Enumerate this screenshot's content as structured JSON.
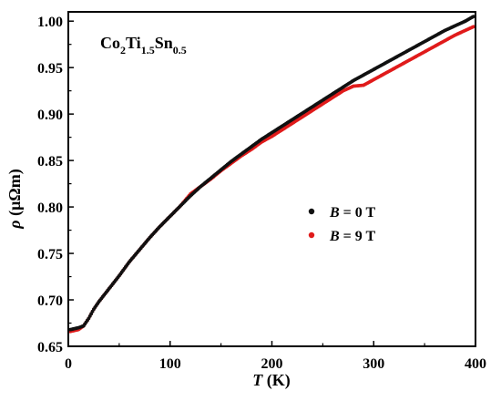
{
  "chart_data": {
    "type": "scatter",
    "annotation": {
      "base": "Co",
      "sub1": "2",
      "el2": "Ti",
      "sub2": "1.5",
      "el3": "Sn",
      "sub3": "0.5"
    },
    "xlabel": {
      "italic": "T",
      "rest": " (K)"
    },
    "ylabel": {
      "italic": "ρ",
      "rest": " (μΩm)"
    },
    "xlim": [
      0,
      400
    ],
    "ylim": [
      0.65,
      1.01
    ],
    "xticks": [
      "0",
      "100",
      "200",
      "300",
      "400"
    ],
    "yticks": [
      "0.65",
      "0.70",
      "0.75",
      "0.80",
      "0.85",
      "0.90",
      "0.95",
      "1.00"
    ],
    "grid": false,
    "legend_position": "center-right",
    "series": [
      {
        "name_italic": "B",
        "name_rest": " = 0 T",
        "color": "#111111",
        "points": [
          [
            2,
            0.668
          ],
          [
            10,
            0.67
          ],
          [
            15,
            0.672
          ],
          [
            20,
            0.68
          ],
          [
            25,
            0.69
          ],
          [
            30,
            0.698
          ],
          [
            40,
            0.712
          ],
          [
            50,
            0.726
          ],
          [
            60,
            0.741
          ],
          [
            70,
            0.754
          ],
          [
            80,
            0.767
          ],
          [
            90,
            0.779
          ],
          [
            100,
            0.79
          ],
          [
            110,
            0.801
          ],
          [
            120,
            0.812
          ],
          [
            130,
            0.822
          ],
          [
            140,
            0.831
          ],
          [
            150,
            0.84
          ],
          [
            160,
            0.849
          ],
          [
            170,
            0.857
          ],
          [
            180,
            0.865
          ],
          [
            190,
            0.873
          ],
          [
            200,
            0.88
          ],
          [
            210,
            0.887
          ],
          [
            220,
            0.894
          ],
          [
            230,
            0.901
          ],
          [
            240,
            0.908
          ],
          [
            250,
            0.915
          ],
          [
            260,
            0.922
          ],
          [
            270,
            0.929
          ],
          [
            280,
            0.936
          ],
          [
            290,
            0.942
          ],
          [
            300,
            0.948
          ],
          [
            310,
            0.954
          ],
          [
            320,
            0.96
          ],
          [
            330,
            0.966
          ],
          [
            340,
            0.972
          ],
          [
            350,
            0.978
          ],
          [
            360,
            0.984
          ],
          [
            370,
            0.99
          ],
          [
            380,
            0.995
          ],
          [
            390,
            1.0
          ],
          [
            398,
            1.005
          ]
        ]
      },
      {
        "name_italic": "B",
        "name_rest": " = 9 T",
        "color": "#e01b1b",
        "points": [
          [
            2,
            0.666
          ],
          [
            10,
            0.668
          ],
          [
            15,
            0.672
          ],
          [
            20,
            0.68
          ],
          [
            25,
            0.69
          ],
          [
            30,
            0.698
          ],
          [
            40,
            0.712
          ],
          [
            50,
            0.726
          ],
          [
            60,
            0.741
          ],
          [
            70,
            0.754
          ],
          [
            80,
            0.767
          ],
          [
            90,
            0.779
          ],
          [
            100,
            0.79
          ],
          [
            110,
            0.801
          ],
          [
            120,
            0.814
          ],
          [
            130,
            0.822
          ],
          [
            140,
            0.83
          ],
          [
            150,
            0.839
          ],
          [
            160,
            0.847
          ],
          [
            170,
            0.855
          ],
          [
            180,
            0.862
          ],
          [
            190,
            0.87
          ],
          [
            200,
            0.876
          ],
          [
            210,
            0.883
          ],
          [
            220,
            0.89
          ],
          [
            230,
            0.897
          ],
          [
            240,
            0.904
          ],
          [
            250,
            0.911
          ],
          [
            260,
            0.918
          ],
          [
            270,
            0.925
          ],
          [
            280,
            0.93
          ],
          [
            290,
            0.931
          ],
          [
            300,
            0.937
          ],
          [
            310,
            0.943
          ],
          [
            320,
            0.949
          ],
          [
            330,
            0.955
          ],
          [
            340,
            0.961
          ],
          [
            350,
            0.967
          ],
          [
            360,
            0.973
          ],
          [
            370,
            0.979
          ],
          [
            380,
            0.985
          ],
          [
            390,
            0.99
          ],
          [
            398,
            0.994
          ]
        ]
      }
    ]
  }
}
